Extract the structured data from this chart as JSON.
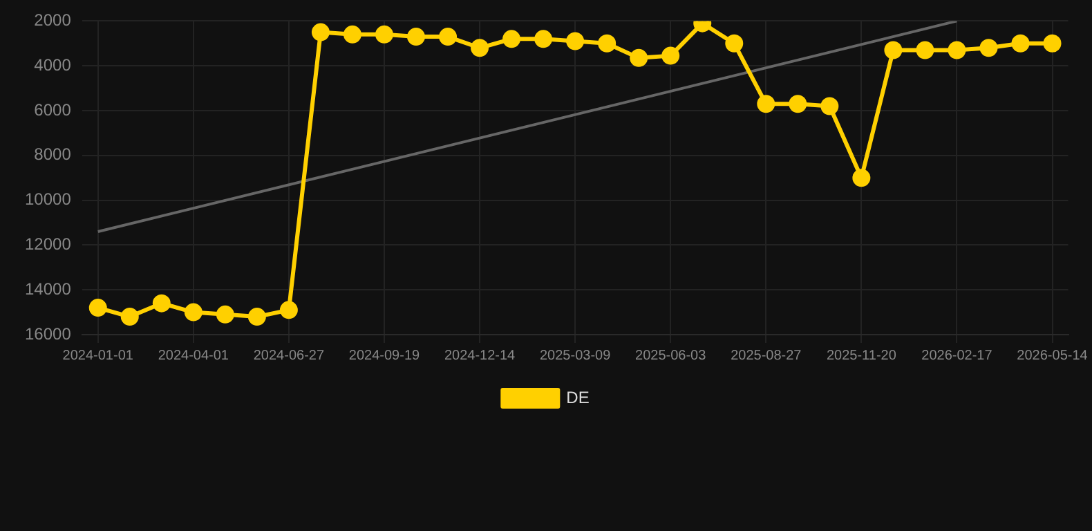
{
  "chart_data": {
    "type": "line",
    "categories": [
      "2024-01-01",
      null,
      null,
      "2024-04-01",
      null,
      null,
      "2024-06-27",
      null,
      null,
      "2024-09-19",
      null,
      null,
      "2024-12-14",
      null,
      null,
      "2025-03-09",
      null,
      null,
      "2025-06-03",
      null,
      null,
      "2025-08-27",
      null,
      null,
      "2025-11-20",
      null,
      null,
      "2026-02-17",
      null,
      null,
      "2026-05-14"
    ],
    "series": [
      {
        "name": "DE",
        "color": "#ffd000",
        "marker": "circle",
        "values": [
          14800,
          15200,
          14600,
          15000,
          15100,
          15200,
          14900,
          2500,
          2600,
          2600,
          2700,
          2700,
          3200,
          2800,
          2800,
          2900,
          3000,
          3650,
          3550,
          2100,
          3000,
          5700,
          5700,
          5800,
          9000,
          3300,
          3300,
          3300,
          3200,
          3000,
          3000
        ]
      },
      {
        "type": "line",
        "color": "#666666",
        "marker": "none",
        "values": [
          11400,
          null,
          null,
          null,
          null,
          null,
          null,
          null,
          null,
          null,
          null,
          null,
          null,
          null,
          null,
          null,
          null,
          null,
          null,
          null,
          null,
          null,
          null,
          null,
          null,
          null,
          null,
          2000,
          null,
          null,
          null
        ]
      }
    ],
    "ylim": [
      16000,
      2000
    ],
    "yticks": [
      2000,
      4000,
      6000,
      8000,
      10000,
      12000,
      14000,
      16000
    ],
    "grid": true,
    "legend": "bottom",
    "line_style": "solid"
  }
}
